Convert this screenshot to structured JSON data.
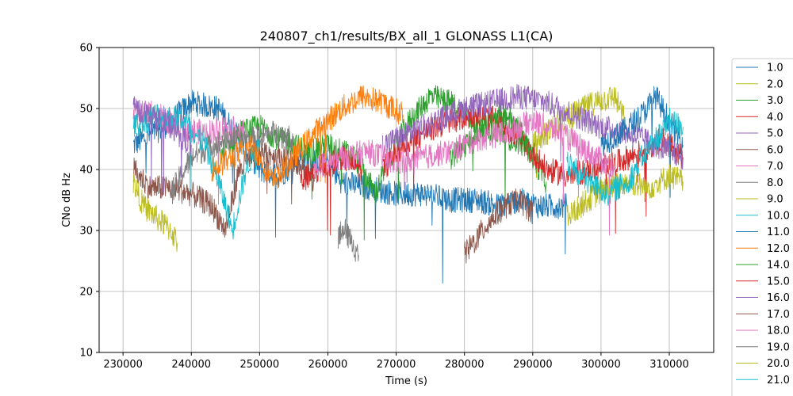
{
  "chart_data": {
    "type": "line",
    "title": "240807_ch1/results/BX_all_1 GLONASS L1(CA)",
    "xlabel": "Time (s)",
    "ylabel": "CNo dB Hz",
    "xlim": [
      226500,
      316500
    ],
    "ylim": [
      10,
      60
    ],
    "xticks": [
      230000,
      240000,
      250000,
      260000,
      270000,
      280000,
      290000,
      300000,
      310000
    ],
    "yticks": [
      10,
      20,
      30,
      40,
      50,
      60
    ],
    "grid": true,
    "legend_position": "right (partially cut off)",
    "series": [
      {
        "name": "1.0",
        "color": "#1f77b4",
        "points": [
          [
            231500,
            44
          ],
          [
            236000,
            47
          ],
          [
            240000,
            51
          ],
          [
            244000,
            50
          ],
          [
            247000,
            45
          ],
          [
            250000,
            40
          ],
          [
            253000,
            39
          ],
          [
            256000,
            42
          ],
          [
            260000,
            41
          ],
          [
            262000,
            38
          ],
          [
            266000,
            37
          ],
          [
            270000,
            36
          ],
          [
            274000,
            36
          ],
          [
            278000,
            35
          ],
          [
            282000,
            35
          ],
          [
            285000,
            34
          ],
          [
            288000,
            35
          ],
          [
            291000,
            34
          ],
          [
            295000,
            34
          ]
        ]
      },
      {
        "name": "2.0",
        "color": "#bcbd22",
        "points": [
          [
            290000,
            44
          ],
          [
            293000,
            47
          ],
          [
            296000,
            49
          ],
          [
            299000,
            51
          ],
          [
            302000,
            52
          ],
          [
            303500,
            48
          ]
        ]
      },
      {
        "name": "3.0",
        "color": "#2ca02c",
        "points": [
          [
            244000,
            42
          ],
          [
            247000,
            46
          ],
          [
            250000,
            47
          ],
          [
            253000,
            45
          ],
          [
            257000,
            43
          ],
          [
            260000,
            44
          ],
          [
            264000,
            42
          ],
          [
            267000,
            36
          ],
          [
            269000,
            42
          ],
          [
            272000,
            48
          ],
          [
            275000,
            52
          ],
          [
            278000,
            51
          ],
          [
            281000,
            48
          ],
          [
            285000,
            46
          ],
          [
            289000,
            44
          ],
          [
            292000,
            38
          ]
        ]
      },
      {
        "name": "4.0",
        "color": "#d62728",
        "points": [
          [
            268000,
            40
          ],
          [
            271000,
            44
          ],
          [
            274000,
            46
          ],
          [
            278000,
            48
          ],
          [
            282000,
            49
          ],
          [
            285000,
            48
          ],
          [
            289000,
            44
          ],
          [
            292000,
            40
          ],
          [
            295000,
            39
          ],
          [
            299000,
            40
          ],
          [
            302000,
            41
          ],
          [
            306000,
            43
          ],
          [
            309000,
            45
          ],
          [
            312000,
            42
          ]
        ]
      },
      {
        "name": "5.0",
        "color": "#9467bd",
        "points": [
          [
            268000,
            44
          ],
          [
            272000,
            46
          ],
          [
            276000,
            48
          ],
          [
            280000,
            50
          ],
          [
            284000,
            51
          ],
          [
            288000,
            52
          ],
          [
            292000,
            51
          ],
          [
            296000,
            49
          ],
          [
            300000,
            47
          ],
          [
            304000,
            46
          ],
          [
            308000,
            44
          ],
          [
            312000,
            42
          ]
        ]
      },
      {
        "name": "6.0",
        "color": "#8c564b",
        "points": [
          [
            231500,
            40
          ],
          [
            234000,
            37
          ],
          [
            237000,
            37
          ],
          [
            240000,
            36
          ],
          [
            243000,
            34
          ],
          [
            245000,
            30
          ],
          [
            247000,
            40
          ],
          [
            250000,
            43
          ],
          [
            253000,
            42
          ],
          [
            256000,
            41
          ],
          [
            258000,
            38
          ]
        ]
      },
      {
        "name": "7.0",
        "color": "#e377c2",
        "points": [
          [
            231500,
            50
          ],
          [
            235000,
            49
          ],
          [
            238000,
            47
          ],
          [
            242000,
            46
          ],
          [
            245000,
            47
          ],
          [
            248000,
            46
          ]
        ]
      },
      {
        "name": "8.0",
        "color": "#7f7f7f",
        "points": [
          [
            237000,
            36
          ],
          [
            240000,
            42
          ],
          [
            243000,
            44
          ],
          [
            246000,
            45
          ],
          [
            249000,
            45
          ],
          [
            252000,
            46
          ],
          [
            255000,
            45
          ]
        ]
      },
      {
        "name": "9.0",
        "color": "#bcbd22",
        "points": [
          [
            231500,
            38
          ],
          [
            233000,
            34
          ],
          [
            235000,
            32
          ],
          [
            237000,
            30
          ],
          [
            238000,
            28
          ]
        ]
      },
      {
        "name": "10.0",
        "color": "#17becf",
        "points": [
          [
            231500,
            47
          ],
          [
            235000,
            49
          ],
          [
            239000,
            48
          ],
          [
            242000,
            44
          ],
          [
            244000,
            38
          ],
          [
            246000,
            30
          ],
          [
            248000,
            40
          ],
          [
            250000,
            45
          ]
        ]
      },
      {
        "name": "11.0",
        "color": "#1f77b4",
        "points": [
          [
            300000,
            44
          ],
          [
            303000,
            46
          ],
          [
            306000,
            49
          ],
          [
            308000,
            52
          ],
          [
            310000,
            48
          ],
          [
            312000,
            44
          ]
        ]
      },
      {
        "name": "12.0",
        "color": "#ff7f0e",
        "points": [
          [
            243000,
            40
          ],
          [
            246000,
            42
          ],
          [
            249000,
            44
          ],
          [
            252000,
            38
          ],
          [
            255000,
            42
          ],
          [
            258000,
            46
          ],
          [
            262000,
            50
          ],
          [
            265000,
            52
          ],
          [
            268000,
            51
          ],
          [
            271000,
            49
          ]
        ]
      },
      {
        "name": "14.0",
        "color": "#2ca02c",
        "points": [
          [
            278000,
            42
          ],
          [
            282000,
            46
          ],
          [
            286000,
            49
          ],
          [
            288000,
            47
          ],
          [
            290000,
            42
          ]
        ]
      },
      {
        "name": "15.0",
        "color": "#d62728",
        "points": [
          [
            256000,
            38
          ],
          [
            259000,
            40
          ],
          [
            262000,
            42
          ],
          [
            265000,
            40
          ]
        ]
      },
      {
        "name": "16.0",
        "color": "#9467bd",
        "points": [
          [
            231500,
            50
          ],
          [
            233500,
            49
          ],
          [
            236000,
            48
          ],
          [
            238000,
            46
          ],
          [
            240000,
            44
          ]
        ]
      },
      {
        "name": "17.0",
        "color": "#8c564b",
        "points": [
          [
            280000,
            26
          ],
          [
            282000,
            29
          ],
          [
            284000,
            32
          ],
          [
            286000,
            34
          ],
          [
            288000,
            35
          ],
          [
            290000,
            33
          ]
        ]
      },
      {
        "name": "18.0",
        "color": "#e377c2",
        "points": [
          [
            258000,
            40
          ],
          [
            262000,
            42
          ],
          [
            266000,
            43
          ],
          [
            270000,
            41
          ],
          [
            274000,
            42
          ],
          [
            278000,
            43
          ],
          [
            282000,
            45
          ],
          [
            286000,
            46
          ],
          [
            290000,
            48
          ],
          [
            294000,
            46
          ],
          [
            298000,
            43
          ],
          [
            302000,
            40
          ]
        ]
      },
      {
        "name": "19.0",
        "color": "#7f7f7f",
        "points": [
          [
            261500,
            29
          ],
          [
            262500,
            30
          ],
          [
            263500,
            28
          ],
          [
            264500,
            26
          ]
        ]
      },
      {
        "name": "20.0",
        "color": "#bcbd22",
        "points": [
          [
            295000,
            32
          ],
          [
            298000,
            35
          ],
          [
            301000,
            37
          ],
          [
            304000,
            38
          ],
          [
            307000,
            37
          ],
          [
            310000,
            39
          ],
          [
            312000,
            38
          ]
        ]
      },
      {
        "name": "21.0",
        "color": "#17becf",
        "points": [
          [
            295000,
            41
          ],
          [
            298000,
            38
          ],
          [
            301000,
            36
          ],
          [
            304000,
            38
          ],
          [
            306000,
            42
          ],
          [
            308000,
            45
          ],
          [
            310000,
            48
          ],
          [
            312000,
            47
          ]
        ]
      }
    ]
  }
}
